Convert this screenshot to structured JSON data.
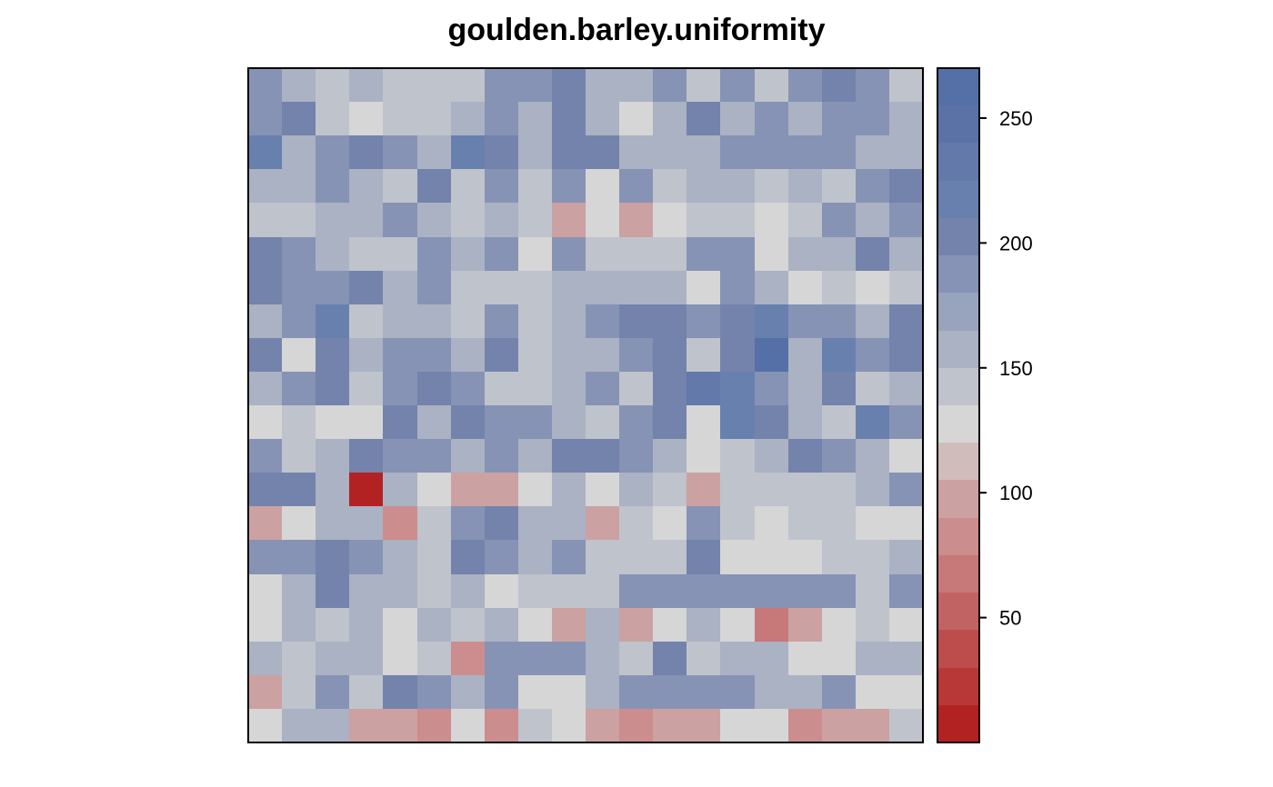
{
  "chart_data": {
    "type": "heatmap",
    "title": "goulden.barley.uniformity",
    "xlabel": "",
    "ylabel": "",
    "grid": false,
    "legend": "right",
    "nrows": 20,
    "ncols": 20,
    "breaks": [
      0,
      15,
      30,
      45,
      60,
      75,
      90,
      105,
      120,
      135,
      150,
      165,
      180,
      195,
      210,
      225,
      240,
      255,
      270
    ],
    "palette": [
      "#B22222",
      "#B83838",
      "#BD4D4D",
      "#C26363",
      "#C77878",
      "#CB8D8D",
      "#CCA1A1",
      "#D1BCBC",
      "#D6D6D6",
      "#BFC3CC",
      "#AAB2C3",
      "#98A3BD",
      "#8693B5",
      "#7383AB",
      "#6880AE",
      "#6279AA",
      "#5B72A6",
      "#5570A6"
    ],
    "colorbar_ticks": [
      50,
      100,
      150,
      200,
      250
    ],
    "values": [
      [
        180,
        160,
        140,
        160,
        140,
        140,
        140,
        180,
        180,
        195,
        160,
        160,
        180,
        140,
        180,
        140,
        180,
        195,
        180,
        140
      ],
      [
        180,
        195,
        140,
        120,
        140,
        140,
        160,
        180,
        160,
        195,
        160,
        120,
        160,
        195,
        160,
        180,
        160,
        180,
        180,
        160
      ],
      [
        210,
        160,
        180,
        195,
        180,
        160,
        210,
        195,
        160,
        195,
        195,
        160,
        160,
        160,
        180,
        180,
        180,
        180,
        160,
        160
      ],
      [
        160,
        160,
        180,
        160,
        140,
        195,
        140,
        180,
        140,
        180,
        120,
        180,
        140,
        160,
        160,
        140,
        160,
        140,
        180,
        195
      ],
      [
        140,
        140,
        160,
        160,
        180,
        160,
        140,
        160,
        140,
        100,
        120,
        100,
        120,
        140,
        140,
        120,
        140,
        180,
        160,
        180
      ],
      [
        195,
        180,
        160,
        140,
        140,
        180,
        160,
        180,
        120,
        180,
        140,
        140,
        140,
        180,
        180,
        120,
        160,
        160,
        195,
        160
      ],
      [
        195,
        180,
        180,
        195,
        160,
        180,
        140,
        140,
        140,
        160,
        160,
        160,
        160,
        120,
        180,
        160,
        120,
        140,
        120,
        140
      ],
      [
        160,
        180,
        210,
        140,
        160,
        160,
        140,
        180,
        140,
        160,
        180,
        195,
        195,
        180,
        195,
        210,
        180,
        180,
        160,
        195
      ],
      [
        195,
        120,
        195,
        160,
        180,
        180,
        160,
        195,
        140,
        160,
        160,
        180,
        195,
        140,
        195,
        255,
        160,
        210,
        180,
        195
      ],
      [
        160,
        180,
        195,
        140,
        180,
        195,
        180,
        140,
        140,
        160,
        180,
        140,
        195,
        225,
        210,
        180,
        160,
        195,
        140,
        160
      ],
      [
        120,
        140,
        120,
        120,
        195,
        160,
        195,
        180,
        180,
        160,
        140,
        180,
        195,
        120,
        210,
        195,
        160,
        140,
        210,
        180
      ],
      [
        180,
        140,
        160,
        195,
        180,
        180,
        160,
        180,
        160,
        195,
        195,
        180,
        160,
        120,
        140,
        160,
        195,
        180,
        160,
        120
      ],
      [
        195,
        195,
        160,
        5,
        160,
        120,
        100,
        100,
        120,
        160,
        120,
        160,
        140,
        100,
        140,
        140,
        140,
        140,
        160,
        180
      ],
      [
        100,
        120,
        160,
        160,
        80,
        140,
        180,
        195,
        160,
        160,
        100,
        140,
        120,
        180,
        140,
        120,
        140,
        140,
        120,
        120
      ],
      [
        180,
        180,
        195,
        180,
        160,
        140,
        195,
        180,
        160,
        180,
        140,
        140,
        140,
        195,
        120,
        120,
        120,
        140,
        140,
        160
      ],
      [
        120,
        160,
        195,
        160,
        160,
        140,
        160,
        120,
        140,
        140,
        140,
        180,
        180,
        180,
        180,
        180,
        180,
        180,
        140,
        180
      ],
      [
        120,
        160,
        140,
        160,
        120,
        160,
        140,
        160,
        120,
        100,
        160,
        100,
        120,
        160,
        120,
        60,
        100,
        120,
        140,
        120
      ],
      [
        160,
        140,
        160,
        160,
        120,
        140,
        80,
        180,
        180,
        180,
        160,
        140,
        195,
        140,
        160,
        160,
        120,
        120,
        160,
        160
      ],
      [
        100,
        140,
        180,
        140,
        195,
        180,
        160,
        180,
        120,
        120,
        160,
        180,
        180,
        180,
        180,
        160,
        160,
        180,
        120,
        120
      ],
      [
        120,
        160,
        160,
        100,
        100,
        80,
        120,
        80,
        140,
        120,
        100,
        80,
        100,
        100,
        120,
        120,
        80,
        100,
        100,
        140
      ]
    ]
  }
}
